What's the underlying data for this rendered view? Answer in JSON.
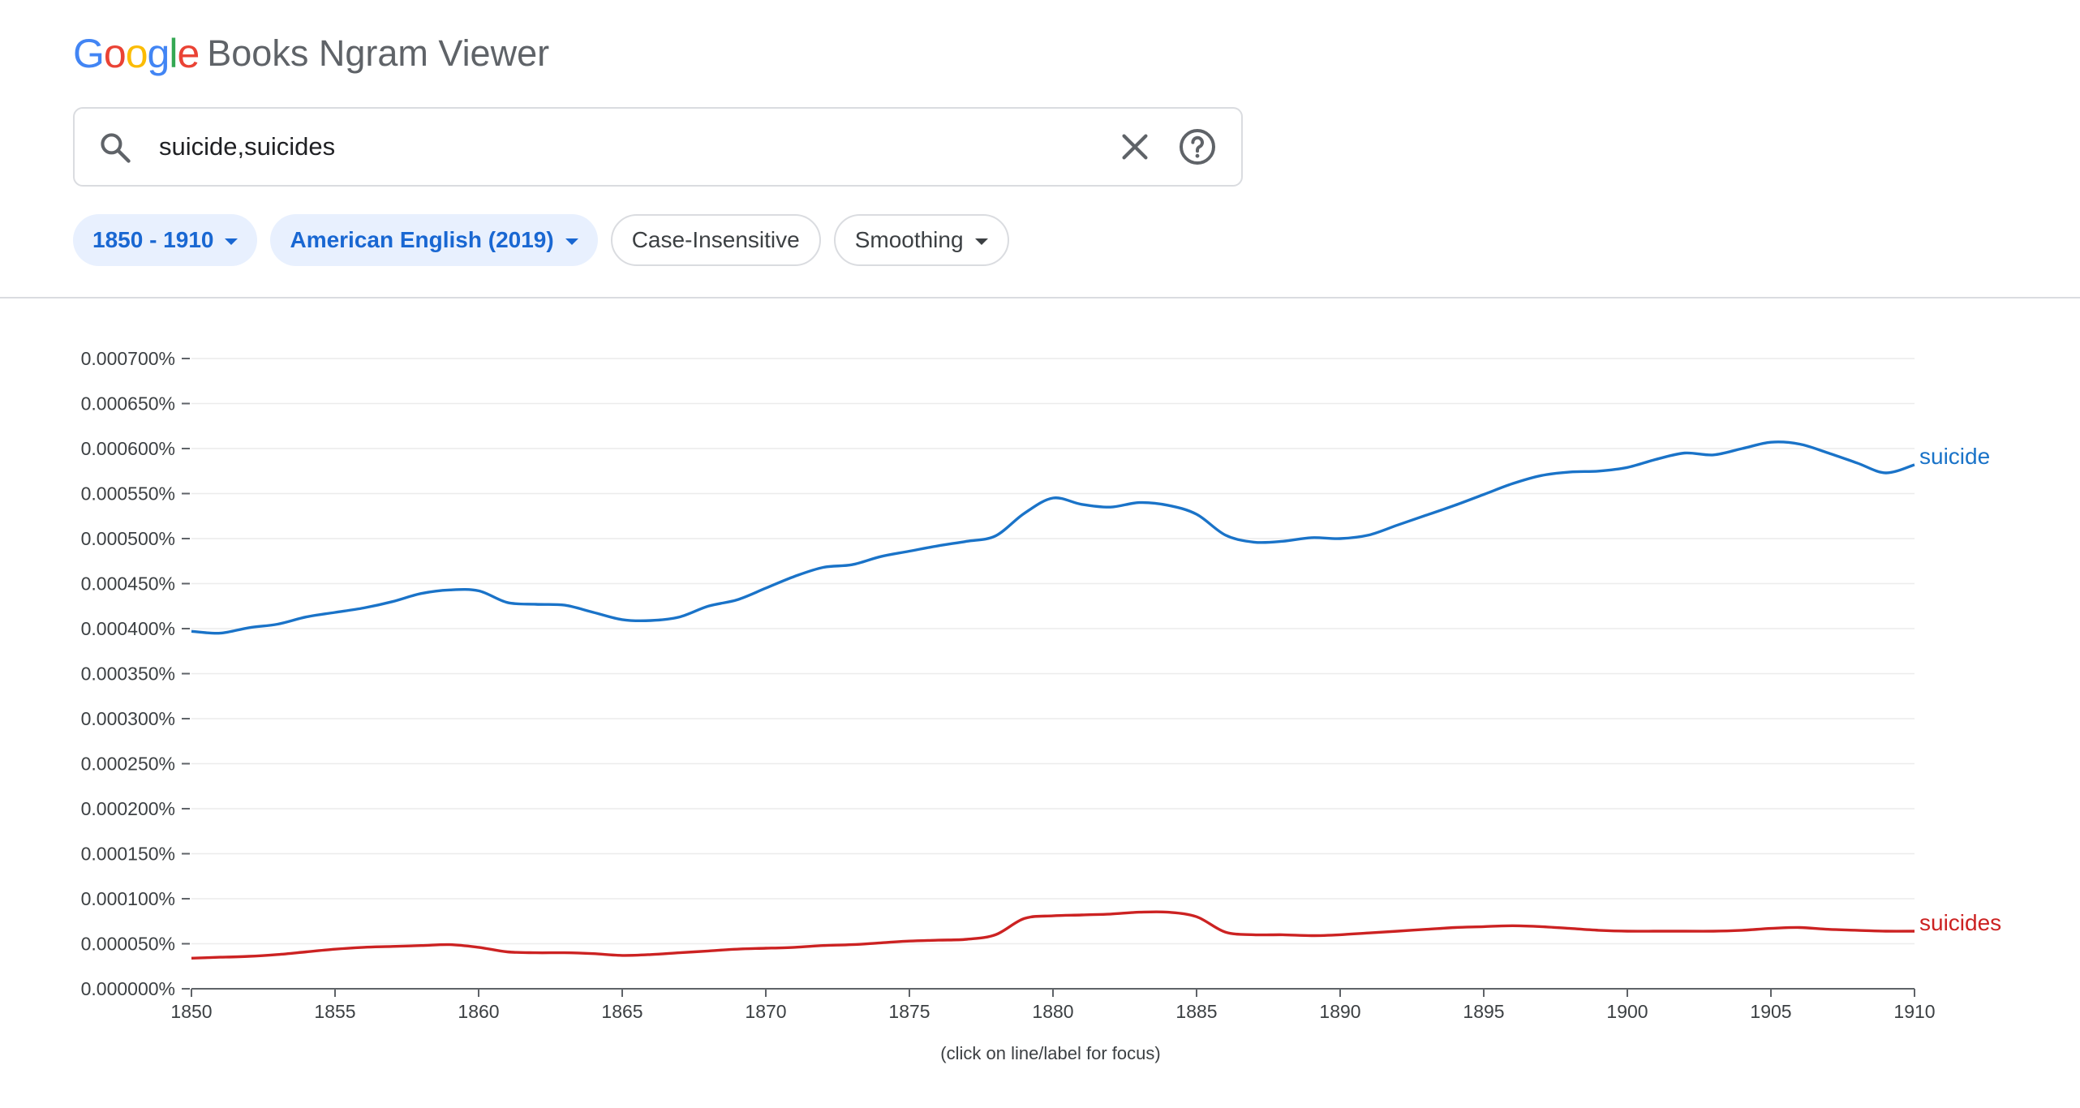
{
  "app": {
    "logo_text": "Google",
    "product": "Books Ngram Viewer"
  },
  "search": {
    "query": "suicide,suicides",
    "icons": [
      "search-icon",
      "clear-icon",
      "help-icon"
    ]
  },
  "filters": {
    "year_range": "1850 - 1910",
    "corpus": "American English (2019)",
    "case": "Case-Insensitive",
    "smoothing": "Smoothing"
  },
  "colors": {
    "suicide": "#1a73c8",
    "suicides": "#cc2222",
    "axis": "#5f6368",
    "grid": "#ececec"
  },
  "chart_data": {
    "type": "line",
    "xlabel": "",
    "ylabel": "",
    "xlim": [
      1850,
      1910
    ],
    "ylim": [
      0,
      0.0007
    ],
    "x_ticks": [
      1850,
      1855,
      1860,
      1865,
      1870,
      1875,
      1880,
      1885,
      1890,
      1895,
      1900,
      1905,
      1910
    ],
    "y_ticks": [
      "0.000000%",
      "0.000050%",
      "0.000100%",
      "0.000150%",
      "0.000200%",
      "0.000250%",
      "0.000300%",
      "0.000350%",
      "0.000400%",
      "0.000450%",
      "0.000500%",
      "0.000550%",
      "0.000600%",
      "0.000650%",
      "0.000700%"
    ],
    "grid": true,
    "legend": "labels at right end of lines",
    "footnote": "(click on line/label for focus)",
    "series": [
      {
        "name": "suicide",
        "x": [
          1850,
          1851,
          1852,
          1853,
          1854,
          1855,
          1856,
          1857,
          1858,
          1859,
          1860,
          1861,
          1862,
          1863,
          1864,
          1865,
          1866,
          1867,
          1868,
          1869,
          1870,
          1871,
          1872,
          1873,
          1874,
          1875,
          1876,
          1877,
          1878,
          1879,
          1880,
          1881,
          1882,
          1883,
          1884,
          1885,
          1886,
          1887,
          1888,
          1889,
          1890,
          1891,
          1892,
          1893,
          1894,
          1895,
          1896,
          1897,
          1898,
          1899,
          1900,
          1901,
          1902,
          1903,
          1904,
          1905,
          1906,
          1907,
          1908,
          1909,
          1910
        ],
        "values": [
          0.000397,
          0.000395,
          0.000401,
          0.000405,
          0.000413,
          0.000418,
          0.000423,
          0.00043,
          0.000439,
          0.000443,
          0.000442,
          0.000429,
          0.000427,
          0.000426,
          0.000418,
          0.00041,
          0.000409,
          0.000413,
          0.000425,
          0.000432,
          0.000445,
          0.000458,
          0.000468,
          0.000471,
          0.00048,
          0.000486,
          0.000492,
          0.000497,
          0.000503,
          0.000528,
          0.000545,
          0.000538,
          0.000535,
          0.00054,
          0.000537,
          0.000527,
          0.000504,
          0.000496,
          0.000497,
          0.000501,
          0.0005,
          0.000504,
          0.000515,
          0.000526,
          0.000537,
          0.000549,
          0.000561,
          0.00057,
          0.000574,
          0.000575,
          0.000579,
          0.000588,
          0.000595,
          0.000593,
          0.0006,
          0.000607,
          0.000605,
          0.000595,
          0.000584,
          0.000573,
          0.000582
        ]
      },
      {
        "name": "suicides",
        "x": [
          1850,
          1851,
          1852,
          1853,
          1854,
          1855,
          1856,
          1857,
          1858,
          1859,
          1860,
          1861,
          1862,
          1863,
          1864,
          1865,
          1866,
          1867,
          1868,
          1869,
          1870,
          1871,
          1872,
          1873,
          1874,
          1875,
          1876,
          1877,
          1878,
          1879,
          1880,
          1881,
          1882,
          1883,
          1884,
          1885,
          1886,
          1887,
          1888,
          1889,
          1890,
          1891,
          1892,
          1893,
          1894,
          1895,
          1896,
          1897,
          1898,
          1899,
          1900,
          1901,
          1902,
          1903,
          1904,
          1905,
          1906,
          1907,
          1908,
          1909,
          1910
        ],
        "values": [
          3.4e-05,
          3.5e-05,
          3.6e-05,
          3.8e-05,
          4.1e-05,
          4.4e-05,
          4.6e-05,
          4.7e-05,
          4.8e-05,
          4.9e-05,
          4.6e-05,
          4.1e-05,
          4e-05,
          4e-05,
          3.9e-05,
          3.7e-05,
          3.8e-05,
          4e-05,
          4.2e-05,
          4.4e-05,
          4.5e-05,
          4.6e-05,
          4.8e-05,
          4.9e-05,
          5.1e-05,
          5.3e-05,
          5.4e-05,
          5.5e-05,
          6e-05,
          7.8e-05,
          8.1e-05,
          8.2e-05,
          8.3e-05,
          8.5e-05,
          8.5e-05,
          8e-05,
          6.3e-05,
          6e-05,
          6e-05,
          5.9e-05,
          6e-05,
          6.2e-05,
          6.4e-05,
          6.6e-05,
          6.8e-05,
          6.9e-05,
          7e-05,
          6.9e-05,
          6.7e-05,
          6.5e-05,
          6.4e-05,
          6.4e-05,
          6.4e-05,
          6.4e-05,
          6.5e-05,
          6.7e-05,
          6.8e-05,
          6.6e-05,
          6.5e-05,
          6.4e-05,
          6.4e-05
        ]
      }
    ]
  }
}
